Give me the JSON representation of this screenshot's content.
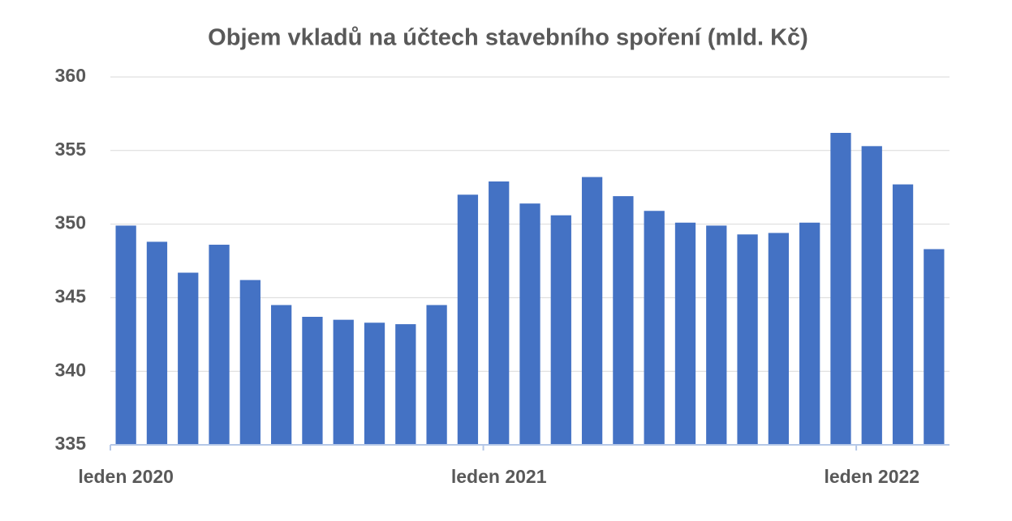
{
  "chart_data": {
    "type": "bar",
    "title": "Objem vkladů na účtech stavebního spoření (mld. Kč)",
    "categories": [
      "leden 2020",
      null,
      null,
      null,
      null,
      null,
      null,
      null,
      null,
      null,
      null,
      null,
      "leden 2021",
      null,
      null,
      null,
      null,
      null,
      null,
      null,
      null,
      null,
      null,
      null,
      "leden 2022",
      null,
      null
    ],
    "values": [
      349.9,
      348.8,
      346.7,
      348.6,
      346.2,
      344.5,
      343.7,
      343.5,
      343.3,
      343.2,
      344.5,
      352.0,
      352.9,
      351.4,
      350.6,
      353.2,
      351.9,
      350.9,
      350.1,
      349.9,
      349.3,
      349.4,
      350.1,
      356.2,
      355.3,
      352.7,
      348.3
    ],
    "color": "#4472c4",
    "ylim": [
      335,
      360
    ],
    "yticks": [
      335,
      340,
      345,
      350,
      355,
      360
    ],
    "grid": true
  }
}
